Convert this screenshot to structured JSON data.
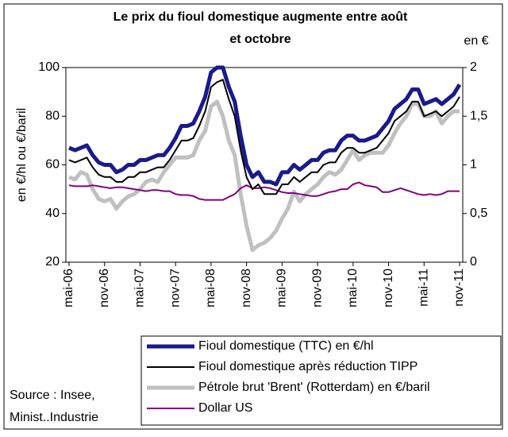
{
  "chart_data": {
    "type": "line",
    "title": [
      "Le prix du fioul domestique augmente entre août",
      "et octobre"
    ],
    "y_label": "en €/hl ou €/baril",
    "y2_label": "en €",
    "source": [
      "Source : Insee,",
      "Minist..Industrie"
    ],
    "categories": [
      "mai-06",
      null,
      null,
      null,
      null,
      null,
      "nov-06",
      null,
      null,
      null,
      null,
      null,
      "mai-07",
      null,
      null,
      null,
      null,
      null,
      "nov-07",
      null,
      null,
      null,
      null,
      null,
      "mai-08",
      null,
      null,
      null,
      null,
      null,
      "nov-08",
      null,
      null,
      null,
      null,
      null,
      "mai-09",
      null,
      null,
      null,
      null,
      null,
      "nov-09",
      null,
      null,
      null,
      null,
      null,
      "mai-10",
      null,
      null,
      null,
      null,
      null,
      "nov-10",
      null,
      null,
      null,
      null,
      null,
      "mai-11",
      null,
      null,
      null,
      null,
      null,
      "nov-11"
    ],
    "ylim": [
      20,
      100
    ],
    "yticks": [
      20,
      40,
      60,
      80,
      100
    ],
    "y2lim": [
      0,
      2
    ],
    "y2ticks": [
      0,
      {
        "value": 0.5,
        "label": "0,5"
      },
      1,
      {
        "value": 1.5,
        "label": "1,5"
      },
      2
    ],
    "series": [
      {
        "name": "Fioul domestique (TTC) en €/hl",
        "color": "#1a1a8c",
        "width": 5,
        "values": [
          67,
          66,
          67,
          68,
          64,
          61,
          60,
          60,
          57,
          58,
          60,
          60,
          62,
          62,
          63,
          64,
          64,
          67,
          71,
          76,
          76,
          77,
          82,
          88,
          98,
          100,
          100,
          92,
          86,
          72,
          60,
          55,
          57,
          53,
          53,
          52,
          57,
          57,
          60,
          58,
          60,
          62,
          62,
          65,
          66,
          66,
          70,
          72,
          72,
          70,
          70,
          71,
          72,
          75,
          78,
          83,
          85,
          87,
          91,
          91,
          85,
          86,
          87,
          85,
          87,
          89,
          93
        ]
      },
      {
        "name": "Fioul domestique après réduction TIPP",
        "color": "#000000",
        "width": 2,
        "values": [
          62,
          61,
          62,
          63,
          59,
          56,
          55,
          55,
          53,
          53,
          55,
          55,
          57,
          57,
          58,
          59,
          59,
          62,
          66,
          70,
          70,
          71,
          76,
          82,
          92,
          94,
          95,
          87,
          80,
          66,
          55,
          50,
          52,
          48,
          48,
          48,
          52,
          52,
          55,
          53,
          55,
          57,
          57,
          60,
          61,
          61,
          65,
          67,
          67,
          65,
          65,
          66,
          67,
          70,
          73,
          78,
          80,
          82,
          86,
          86,
          80,
          81,
          82,
          80,
          82,
          84,
          88
        ]
      },
      {
        "name": "Pétrole brut 'Brent' (Rotterdam) en €/baril",
        "color": "#c0c0c0",
        "width": 5,
        "values": [
          55,
          54,
          57,
          56,
          50,
          46,
          45,
          46,
          42,
          45,
          47,
          48,
          50,
          53,
          54,
          53,
          57,
          60,
          63,
          63,
          63,
          64,
          70,
          74,
          84,
          86,
          80,
          70,
          64,
          48,
          35,
          25,
          27,
          28,
          30,
          33,
          38,
          42,
          49,
          45,
          48,
          50,
          52,
          55,
          57,
          56,
          58,
          62,
          66,
          62,
          64,
          65,
          65,
          65,
          68,
          73,
          77,
          80,
          85,
          85,
          80,
          80,
          82,
          77,
          80,
          82,
          82
        ]
      },
      {
        "name": "Dollar US",
        "color": "#800080",
        "width": 2,
        "axis": "y2",
        "values": [
          0.79,
          0.78,
          0.78,
          0.78,
          0.79,
          0.78,
          0.77,
          0.76,
          0.77,
          0.77,
          0.76,
          0.75,
          0.74,
          0.73,
          0.74,
          0.74,
          0.73,
          0.73,
          0.7,
          0.69,
          0.69,
          0.68,
          0.65,
          0.64,
          0.64,
          0.64,
          0.64,
          0.67,
          0.7,
          0.76,
          0.79,
          0.76,
          0.76,
          0.77,
          0.76,
          0.74,
          0.72,
          0.71,
          0.71,
          0.7,
          0.69,
          0.68,
          0.68,
          0.7,
          0.72,
          0.73,
          0.75,
          0.75,
          0.8,
          0.82,
          0.79,
          0.78,
          0.77,
          0.72,
          0.72,
          0.74,
          0.76,
          0.74,
          0.72,
          0.7,
          0.69,
          0.7,
          0.69,
          0.7,
          0.73,
          0.73,
          0.73
        ]
      }
    ]
  }
}
